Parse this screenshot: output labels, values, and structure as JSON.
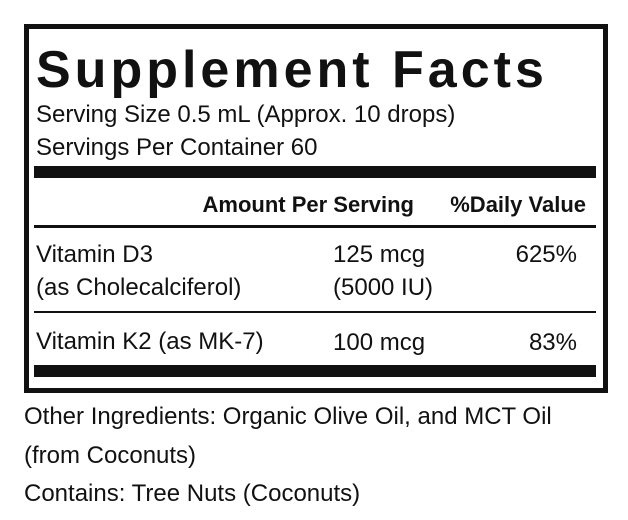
{
  "header": {
    "title": "Supplement Facts",
    "serving_size": "Serving Size 0.5 mL (Approx. 10 drops)",
    "servings_per_container": "Servings Per Container 60"
  },
  "table": {
    "columns": [
      "Amount Per Serving",
      "%Daily Value"
    ],
    "rows": [
      {
        "name": [
          "Vitamin D3",
          "(as Cholecalciferol)"
        ],
        "amount": [
          "125 mcg",
          "(5000 IU)"
        ],
        "daily_value": "625%"
      },
      {
        "name": [
          "Vitamin K2 (as MK-7)"
        ],
        "amount": [
          "100 mcg"
        ],
        "daily_value": "83%"
      }
    ]
  },
  "footer": {
    "other_ingredients": [
      "Other Ingredients: Organic Olive Oil, and MCT Oil",
      "(from Coconuts)"
    ],
    "contains": "Contains: Tree Nuts (Coconuts)"
  }
}
